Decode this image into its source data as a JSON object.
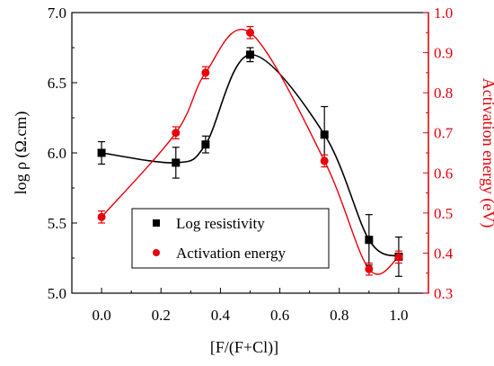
{
  "chart_data": {
    "type": "line",
    "xlabel": "[F/(F+Cl)]",
    "ylabel_left": "log ρ (Ω.cm)",
    "ylabel_right": "Activation energy (eV)",
    "xlim": [
      -0.1,
      1.1
    ],
    "xticks": [
      "0.0",
      "0.2",
      "0.4",
      "0.6",
      "0.8",
      "1.0"
    ],
    "ylim_left": [
      5.0,
      7.0
    ],
    "yticks_left": [
      "5.0",
      "5.5",
      "6.0",
      "6.5",
      "7.0"
    ],
    "ylim_right": [
      0.3,
      1.0
    ],
    "yticks_right": [
      "0.3",
      "0.4",
      "0.5",
      "0.6",
      "0.7",
      "0.8",
      "0.9",
      "1.0"
    ],
    "grid": false,
    "legend_position": "lower-left-center",
    "series": [
      {
        "name": "Log resistivity",
        "axis": "left",
        "marker": "square",
        "color": "#000000",
        "x": [
          0.0,
          0.25,
          0.35,
          0.5,
          0.75,
          0.9,
          1.0
        ],
        "y": [
          6.0,
          5.93,
          6.06,
          6.7,
          6.13,
          5.38,
          5.26
        ],
        "error": [
          0.08,
          0.11,
          0.06,
          0.05,
          0.2,
          0.18,
          0.14
        ]
      },
      {
        "name": "Activation energy",
        "axis": "right",
        "marker": "circle",
        "color": "#e8000b",
        "x": [
          0.0,
          0.25,
          0.35,
          0.5,
          0.75,
          0.9,
          1.0
        ],
        "y": [
          0.49,
          0.7,
          0.85,
          0.95,
          0.63,
          0.36,
          0.39
        ],
        "error": [
          0.015,
          0.015,
          0.015,
          0.015,
          0.015,
          0.015,
          0.015
        ]
      }
    ]
  }
}
